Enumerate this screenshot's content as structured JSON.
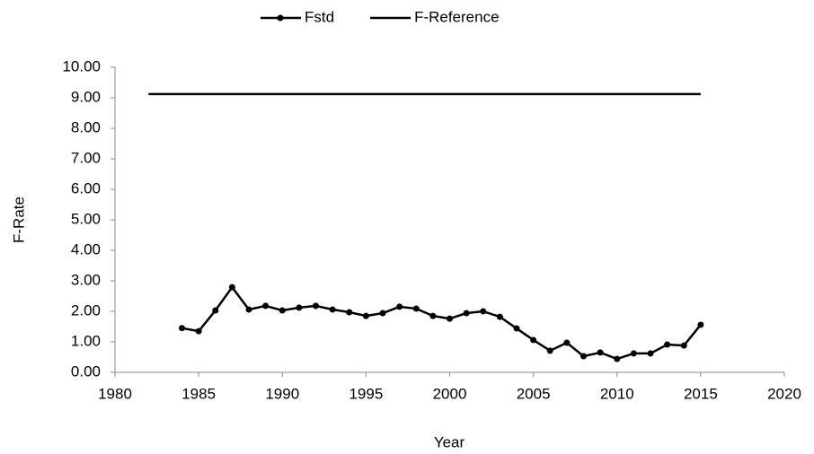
{
  "chart_data": {
    "type": "line",
    "xlabel": "Year",
    "ylabel": "F-Rate",
    "xlim": [
      1980,
      2020
    ],
    "xticks": [
      1980,
      1985,
      1990,
      1995,
      2000,
      2005,
      2010,
      2015,
      2020
    ],
    "ylim": [
      0,
      10
    ],
    "yticks": [
      {
        "value": 0,
        "label": "0.00"
      },
      {
        "value": 1,
        "label": "1.00"
      },
      {
        "value": 2,
        "label": "2.00"
      },
      {
        "value": 3,
        "label": "3.00"
      },
      {
        "value": 4,
        "label": "4.00"
      },
      {
        "value": 5,
        "label": "5.00"
      },
      {
        "value": 6,
        "label": "6.00"
      },
      {
        "value": 7,
        "label": "7.00"
      },
      {
        "value": 8,
        "label": "8.00"
      },
      {
        "value": 9,
        "label": "9.00"
      },
      {
        "value": 10,
        "label": "10.00"
      }
    ],
    "legend": "top",
    "series": [
      {
        "name": "Fstd",
        "color": "#000000",
        "marker": true,
        "x": [
          1984,
          1985,
          1986,
          1987,
          1988,
          1989,
          1990,
          1991,
          1992,
          1993,
          1994,
          1995,
          1996,
          1997,
          1998,
          1999,
          2000,
          2001,
          2002,
          2003,
          2004,
          2005,
          2006,
          2007,
          2008,
          2009,
          2010,
          2011,
          2012,
          2013,
          2014,
          2015
        ],
        "values": [
          1.45,
          1.35,
          2.03,
          2.79,
          2.06,
          2.18,
          2.03,
          2.12,
          2.18,
          2.06,
          1.97,
          1.85,
          1.94,
          2.15,
          2.09,
          1.85,
          1.76,
          1.94,
          2.0,
          1.82,
          1.44,
          1.06,
          0.71,
          0.97,
          0.53,
          0.65,
          0.44,
          0.62,
          0.62,
          0.91,
          0.88,
          1.56
        ]
      },
      {
        "name": "F-Reference",
        "color": "#000000",
        "marker": false,
        "x": [
          1982,
          2015
        ],
        "values": [
          9.12,
          9.12
        ]
      }
    ]
  }
}
